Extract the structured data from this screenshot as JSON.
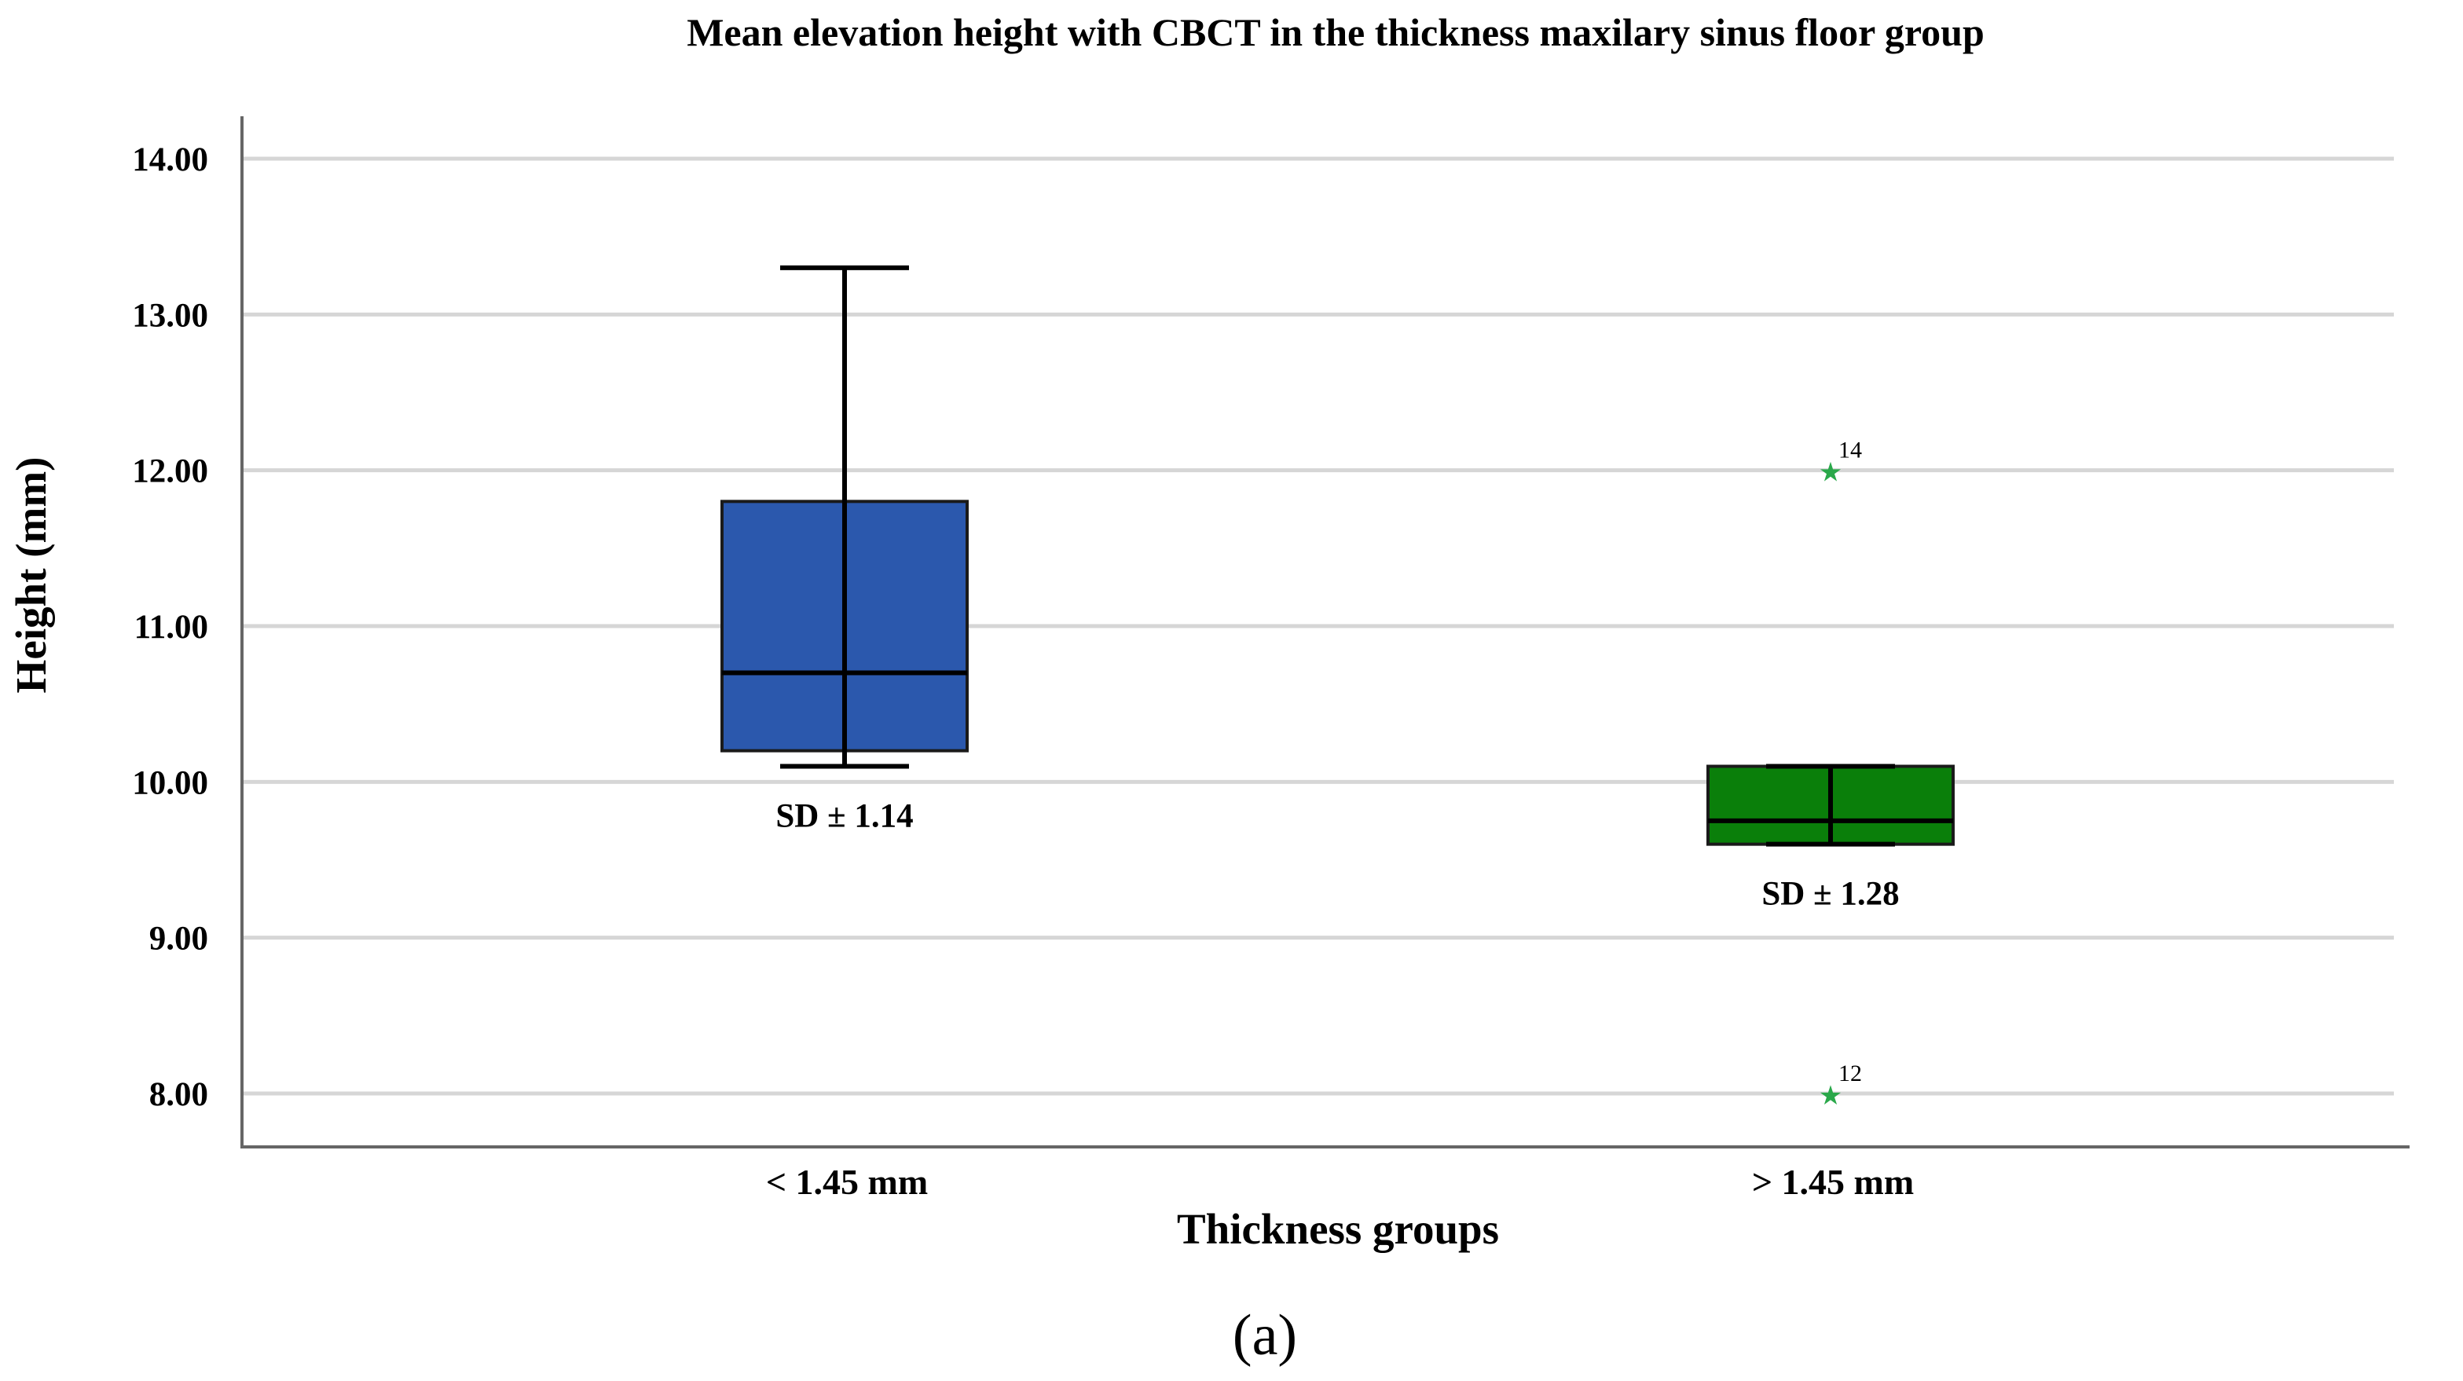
{
  "chart_data": {
    "type": "box",
    "title": "Mean elevation height with CBCT in the thickness maxilary sinus floor group",
    "xlabel": "Thickness groups",
    "ylabel": "Height (mm)",
    "ylim": [
      7.65,
      14.3
    ],
    "yticks": [
      14.0,
      13.0,
      12.0,
      11.0,
      10.0,
      9.0,
      8.0
    ],
    "ytick_labels": [
      "14.00",
      "13.00",
      "12.00",
      "11.00",
      "10.00",
      "9.00",
      "8.00"
    ],
    "grid": true,
    "categories": [
      "< 1.45 mm",
      "> 1.45 mm"
    ],
    "boxes": [
      {
        "group": "< 1.45 mm",
        "whisker_low": 10.1,
        "q1": 10.2,
        "median": 10.7,
        "q3": 11.8,
        "whisker_high": 13.3,
        "color": "#2b58ad",
        "sd_label": "SD ± 1.14",
        "outliers": []
      },
      {
        "group": "> 1.45 mm",
        "whisker_low": 9.6,
        "q1": 9.6,
        "median": 9.75,
        "q3": 10.1,
        "whisker_high": 10.1,
        "color": "#0a7f0a",
        "sd_label": "SD ± 1.28",
        "outliers": [
          {
            "label": "14",
            "value": 12.0
          },
          {
            "label": "12",
            "value": 8.0
          }
        ]
      }
    ],
    "outlier_color": "#2aa84a"
  },
  "caption": "(a)"
}
